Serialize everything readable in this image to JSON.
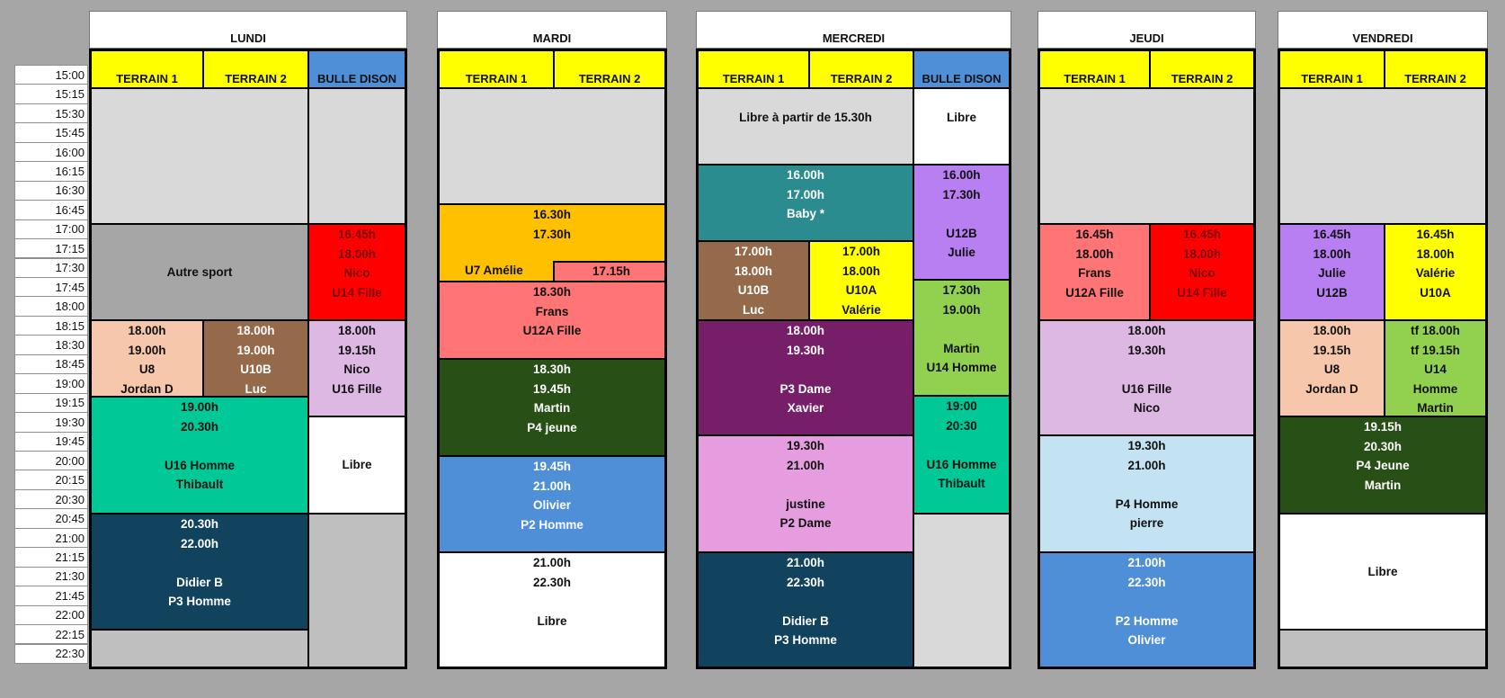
{
  "times": [
    "15:00",
    "15:15",
    "15:30",
    "15:45",
    "16:00",
    "16:15",
    "16:30",
    "16:45",
    "17:00",
    "17:15",
    "17:30",
    "17:45",
    "18:00",
    "18:15",
    "18:30",
    "18:45",
    "19:00",
    "19:15",
    "19:30",
    "19:45",
    "20:00",
    "20:15",
    "20:30",
    "20:45",
    "21:00",
    "21:15",
    "21:30",
    "21:45",
    "22:00",
    "22:15",
    "22:30"
  ],
  "columns": {
    "terrain1": "TERRAIN 1",
    "terrain2": "TERRAIN 2",
    "bulle": "BULLE DISON"
  },
  "colors": {
    "header_yellow": "#ffff00",
    "bulle_blue": "#4f8fd8",
    "empty_gray": "#d9d9d9",
    "dark_gray": "#a6a6a6",
    "red": "#ff0000",
    "salmon": "#ff7474",
    "peach": "#f6c7aa",
    "brown": "#956a4a",
    "lavender": "#dcb8e2",
    "teal_green": "#00c896",
    "navy": "#12435e",
    "orange": "#ffc000",
    "forest": "#284f16",
    "mid_blue": "#4f8fd8",
    "teal": "#2a8c8e",
    "purple": "#b77ff2",
    "lime": "#92d050",
    "plum": "#761e68",
    "pink": "#e59de0",
    "light_blue": "#c3e3f3"
  },
  "days": {
    "lundi": {
      "name": "LUNDI",
      "autre_sport": "Autre sport",
      "nico16": {
        "l1": "16.45h",
        "l2": "18.00h",
        "l3": "Nico",
        "l4": "U14 Fille"
      },
      "u8": {
        "l1": "18.00h",
        "l2": "19.00h",
        "l3": "U8",
        "l4": "Jordan D"
      },
      "u10b": {
        "l1": "18.00h",
        "l2": "19.00h",
        "l3": "U10B",
        "l4": "Luc"
      },
      "nico18": {
        "l1": "18.00h",
        "l2": "19.15h",
        "l3": "Nico",
        "l4": "U16 Fille"
      },
      "u16h": {
        "l1": "19.00h",
        "l2": "20.30h",
        "l3": "U16 Homme",
        "l4": "Thibault"
      },
      "libre": "Libre",
      "p3": {
        "l1": "20.30h",
        "l2": "22.00h",
        "l3": "Didier B",
        "l4": "P3 Homme"
      }
    },
    "mardi": {
      "name": "MARDI",
      "u7": {
        "l1": "16.30h",
        "l2": "17.30h",
        "l3": "U7 Amélie"
      },
      "u12a": {
        "l0": "17.15h",
        "l1": "18.30h",
        "l2": "Frans",
        "l3": "U12A Fille"
      },
      "p4": {
        "l1": "18.30h",
        "l2": "19.45h",
        "l3": "Martin",
        "l4": "P4 jeune"
      },
      "p2": {
        "l1": "19.45h",
        "l2": "21.00h",
        "l3": "Olivier",
        "l4": "P2 Homme"
      },
      "libre": {
        "l1": "21.00h",
        "l2": "22.30h",
        "l3": "Libre"
      }
    },
    "mercredi": {
      "name": "MERCREDI",
      "libre_partir": "Libre à partir de 15.30h",
      "libre": "Libre",
      "baby": {
        "l1": "16.00h",
        "l2": "17.00h",
        "l3": "Baby *"
      },
      "u12b": {
        "l1": "16.00h",
        "l2": "17.30h",
        "l3": "U12B",
        "l4": "Julie"
      },
      "u10b": {
        "l1": "17.00h",
        "l2": "18.00h",
        "l3": "U10B",
        "l4": "Luc"
      },
      "u10a": {
        "l1": "17.00h",
        "l2": "18.00h",
        "l3": "U10A",
        "l4": "Valérie"
      },
      "u14h": {
        "l1": "17.30h",
        "l2": "19.00h",
        "l3": "Martin",
        "l4": "U14 Homme"
      },
      "p3d": {
        "l1": "18.00h",
        "l2": "19.30h",
        "l3": "P3 Dame",
        "l4": "Xavier"
      },
      "u16h": {
        "l1": "19:00",
        "l2": "20:30",
        "l3": "U16 Homme",
        "l4": "Thibault"
      },
      "p2d": {
        "l1": "19.30h",
        "l2": "21.00h",
        "l3": "justine",
        "l4": "P2 Dame"
      },
      "p3h": {
        "l1": "21.00h",
        "l2": "22.30h",
        "l3": "Didier B",
        "l4": "P3 Homme"
      }
    },
    "jeudi": {
      "name": "JEUDI",
      "frans": {
        "l1": "16.45h",
        "l2": "18.00h",
        "l3": "Frans",
        "l4": "U12A Fille"
      },
      "nico": {
        "l1": "16.45h",
        "l2": "18.00h",
        "l3": "Nico",
        "l4": "U14 Fille"
      },
      "u16f": {
        "l1": "18.00h",
        "l2": "19.30h",
        "l3": "U16 Fille",
        "l4": "Nico"
      },
      "p4h": {
        "l1": "19.30h",
        "l2": "21.00h",
        "l3": "P4 Homme",
        "l4": "pierre"
      },
      "p2h": {
        "l1": "21.00h",
        "l2": "22.30h",
        "l3": "P2 Homme",
        "l4": "Olivier"
      }
    },
    "vendredi": {
      "name": "VENDREDI",
      "u12b": {
        "l1": "16.45h",
        "l2": "18.00h",
        "l3": "Julie",
        "l4": "U12B"
      },
      "u10a": {
        "l1": "16.45h",
        "l2": "18.00h",
        "l3": "Valérie",
        "l4": "U10A"
      },
      "u8": {
        "l1": "18.00h",
        "l2": "19.15h",
        "l3": "U8",
        "l4": "Jordan D"
      },
      "u14": {
        "l1": "tf 18.00h",
        "l2": "tf 19.15h",
        "l3": "U14",
        "l4": "Homme",
        "l5": "Martin"
      },
      "p4j": {
        "l1": "19.15h",
        "l2": "20.30h",
        "l3": "P4 Jeune",
        "l4": "Martin"
      },
      "libre": "Libre"
    }
  }
}
